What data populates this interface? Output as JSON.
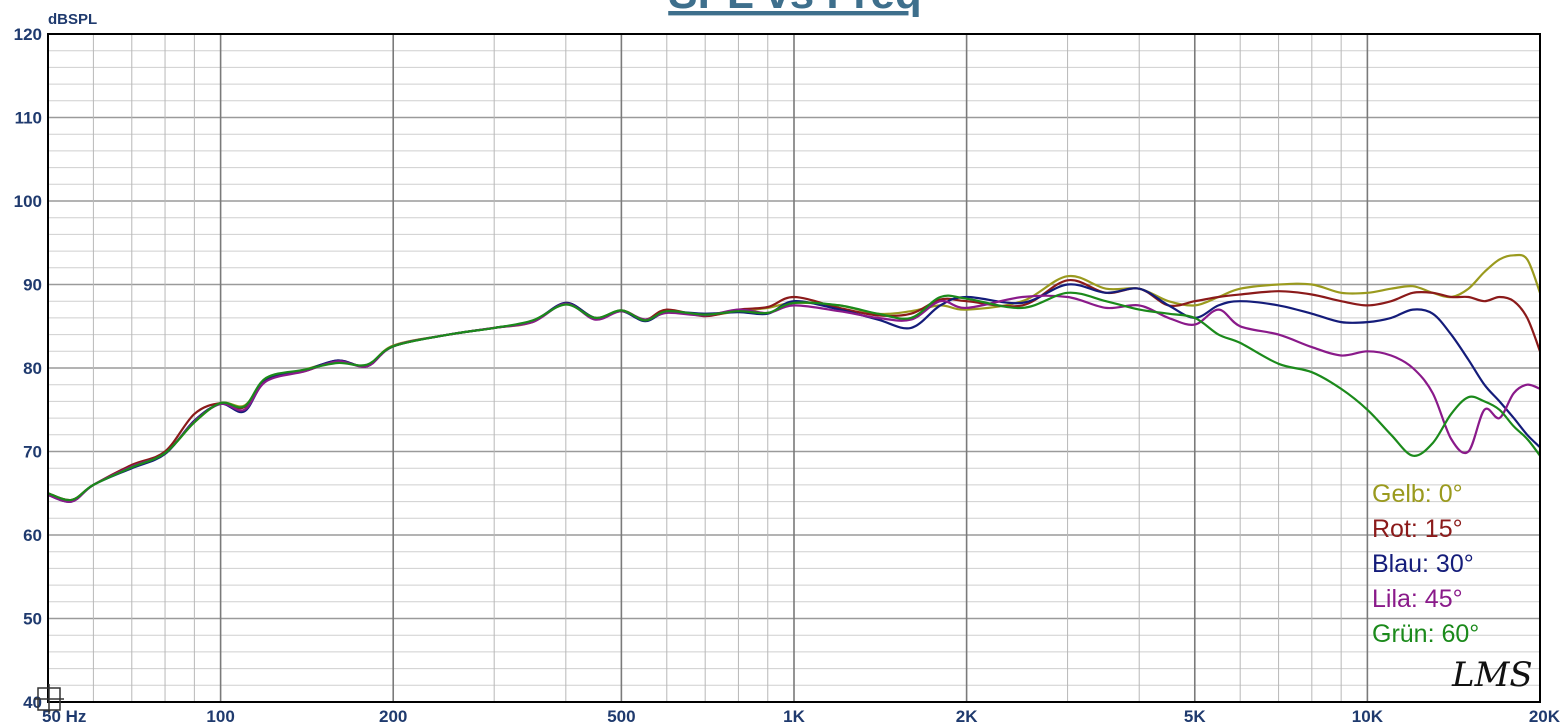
{
  "chart_data": {
    "type": "line",
    "title": "SPL vs Freq",
    "ylabel": "dBSPL",
    "xlabel": "",
    "x_scale": "log",
    "xlim": [
      50,
      20000
    ],
    "ylim": [
      40,
      120
    ],
    "x_ticks": [
      50,
      100,
      200,
      500,
      1000,
      2000,
      5000,
      10000,
      20000
    ],
    "x_tick_labels": [
      "50 Hz",
      "100",
      "200",
      "500",
      "1K",
      "2K",
      "5K",
      "10K",
      "20K"
    ],
    "y_ticks": [
      40,
      50,
      60,
      70,
      80,
      90,
      100,
      110,
      120
    ],
    "y_tick_labels": [
      "40",
      "50",
      "60",
      "70",
      "80",
      "90",
      "100",
      "110",
      "120"
    ],
    "grid": true,
    "legend_position": "bottom-right",
    "x": [
      50,
      55,
      60,
      70,
      80,
      90,
      100,
      110,
      120,
      140,
      160,
      180,
      200,
      250,
      300,
      350,
      400,
      450,
      500,
      550,
      600,
      700,
      800,
      900,
      1000,
      1200,
      1400,
      1600,
      1800,
      2000,
      2500,
      3000,
      3500,
      4000,
      4500,
      5000,
      5500,
      6000,
      7000,
      8000,
      9000,
      10000,
      11000,
      12000,
      13000,
      14000,
      15000,
      16000,
      17000,
      18000,
      19000,
      20000
    ],
    "series": [
      {
        "name": "Gelb: 0°",
        "color": "#9a9a1e",
        "values": [
          65,
          64.2,
          66,
          68.2,
          69.8,
          73.5,
          75.8,
          75.5,
          78.5,
          79.8,
          80.8,
          80.3,
          82.7,
          84,
          84.8,
          85.5,
          87.8,
          86,
          86.8,
          85.8,
          86.8,
          86.3,
          86.8,
          87.2,
          87.8,
          87.5,
          86.5,
          86.8,
          87.5,
          87,
          88,
          91,
          89.5,
          89.5,
          88,
          87.5,
          88.5,
          89.5,
          90,
          90,
          89,
          89,
          89.5,
          89.8,
          89,
          88.5,
          89.5,
          91.5,
          93,
          93.5,
          93,
          89
        ]
      },
      {
        "name": "Rot: 15°",
        "color": "#8b1a1a",
        "values": [
          65,
          64.2,
          66,
          68.4,
          70,
          74.5,
          75.8,
          75.3,
          78.7,
          79.6,
          80.9,
          80.2,
          82.6,
          84,
          84.8,
          85.6,
          87.7,
          86,
          86.9,
          85.8,
          87,
          86.2,
          87,
          87.3,
          88.5,
          87.2,
          86.3,
          86.5,
          88.2,
          88,
          87.5,
          90.5,
          89,
          89.5,
          87.5,
          88,
          88.5,
          88.8,
          89.2,
          88.8,
          88,
          87.5,
          88,
          89,
          89,
          88.5,
          88.5,
          88,
          88.5,
          88,
          86,
          82
        ]
      },
      {
        "name": "Blau: 30°",
        "color": "#141c7a",
        "values": [
          64.8,
          64,
          66,
          68,
          69.7,
          73.7,
          75.7,
          74.8,
          78.5,
          79.7,
          80.9,
          80.2,
          82.6,
          84,
          84.8,
          85.6,
          87.8,
          86,
          86.8,
          85.6,
          86.7,
          86.5,
          86.7,
          86.5,
          88,
          87,
          85.8,
          84.8,
          87.5,
          88.5,
          87.8,
          90,
          89,
          89.5,
          87.5,
          86,
          87.5,
          88,
          87.5,
          86.5,
          85.5,
          85.5,
          86,
          87,
          86.5,
          84,
          81,
          78,
          76,
          74,
          72,
          70.5
        ]
      },
      {
        "name": "Lila: 45°",
        "color": "#8a1a8a",
        "values": [
          64.8,
          64,
          66,
          68.2,
          69.8,
          73.6,
          75.7,
          75,
          78.4,
          79.6,
          80.8,
          80.2,
          82.6,
          84,
          84.8,
          85.5,
          87.7,
          85.8,
          86.8,
          85.8,
          86.6,
          86.3,
          87,
          86.6,
          87.5,
          86.8,
          86,
          85.8,
          88,
          87.2,
          88.5,
          88.5,
          87.2,
          87.5,
          86,
          85.2,
          87,
          85,
          84,
          82.5,
          81.5,
          82,
          81.5,
          80,
          77,
          71.5,
          70,
          75,
          74,
          77,
          78,
          77.5
        ]
      },
      {
        "name": "Grün: 60°",
        "color": "#1b8a1b",
        "values": [
          65,
          64.2,
          66,
          68.1,
          69.8,
          73.5,
          75.8,
          75.4,
          78.8,
          79.8,
          80.6,
          80.4,
          82.6,
          84,
          84.8,
          85.7,
          87.6,
          86,
          86.9,
          85.7,
          86.8,
          86.4,
          86.8,
          86.6,
          87.8,
          87.5,
          86.5,
          86,
          88.5,
          88.3,
          87.2,
          89,
          88,
          87,
          86.5,
          86,
          84,
          83,
          80.5,
          79.5,
          77.5,
          75,
          72,
          69.5,
          71,
          74.5,
          76.5,
          76,
          75,
          73,
          71.5,
          69.5
        ]
      }
    ]
  },
  "logo_text": "LMS"
}
